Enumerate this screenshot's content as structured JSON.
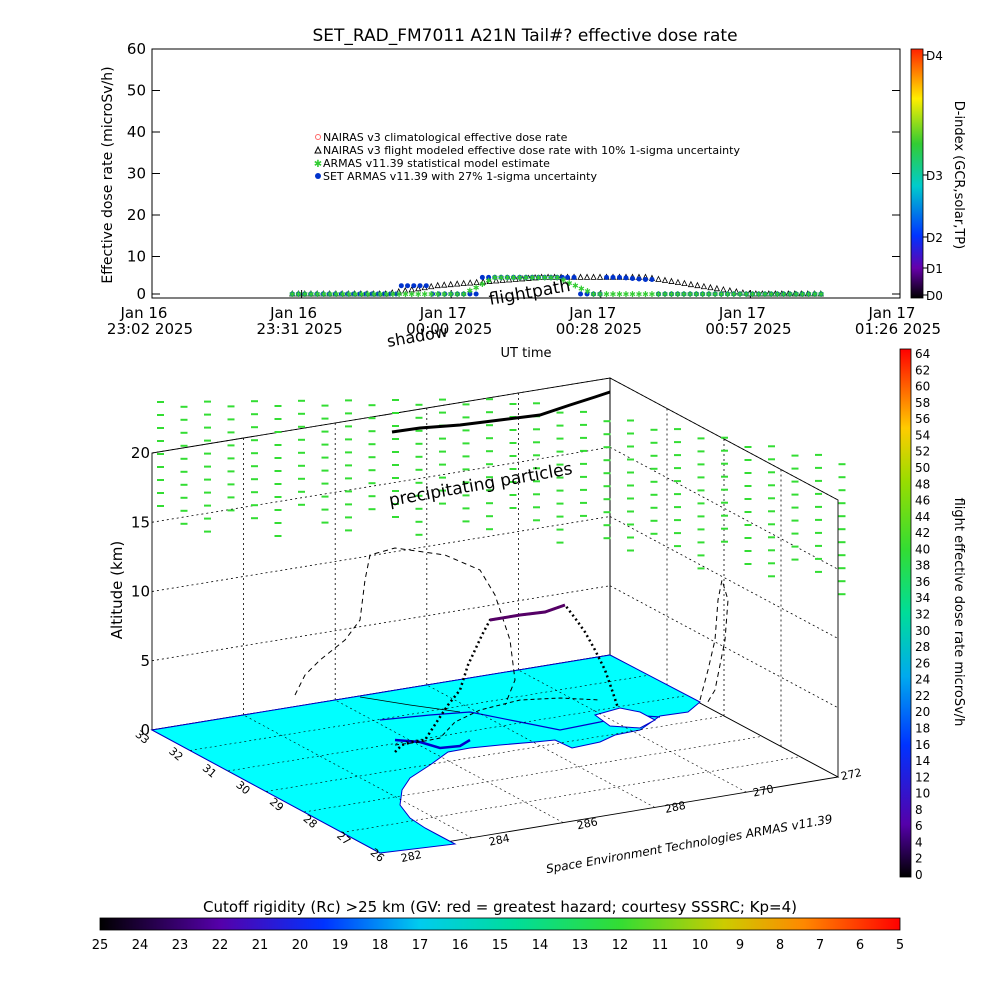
{
  "title": "SET_RAD_FM7011  A21N Tail#? effective dose rate",
  "top_chart": {
    "ylabel": "Effective dose rate (microSv/h)",
    "xlabel": "UT time",
    "y_ticks": [
      "0",
      "10",
      "20",
      "30",
      "40",
      "50",
      "60"
    ],
    "x_ticks": [
      {
        "l1": "Jan 16",
        "l2": "23:02 2025"
      },
      {
        "l1": "Jan 16",
        "l2": "23:31 2025"
      },
      {
        "l1": "Jan 17",
        "l2": "00:00 2025"
      },
      {
        "l1": "Jan 17",
        "l2": "00:28 2025"
      },
      {
        "l1": "Jan 17",
        "l2": "00:57 2025"
      },
      {
        "l1": "Jan 17",
        "l2": "01:26 2025"
      }
    ],
    "legend": [
      {
        "label": "NAIRAS v3 climatological effective dose rate",
        "color": "#ff6666",
        "marker": "o"
      },
      {
        "label": "NAIRAS v3 flight modeled effective dose rate with 10% 1-sigma uncertainty",
        "color": "#000000",
        "marker": "triangle"
      },
      {
        "label": "ARMAS v11.39 statistical model estimate",
        "color": "#33cc33",
        "marker": "x"
      },
      {
        "label": "SET ARMAS v11.39 with 27% 1-sigma uncertainty",
        "color": "#0033cc",
        "marker": "dot"
      }
    ],
    "dindex": {
      "label": "D-index (GCR,solar,TP)",
      "ticks": [
        "D4",
        "D3",
        "D2",
        "D1",
        "D0"
      ]
    }
  },
  "chart_data": {
    "type": "scatter",
    "title": "SET_RAD_FM7011  A21N Tail#? effective dose rate",
    "xlabel": "UT time",
    "ylabel": "Effective dose rate (microSv/h)",
    "x_range_minutes_after_2302": [
      0,
      144
    ],
    "ylim": [
      0,
      60
    ],
    "series": [
      {
        "name": "NAIRAS v3 flight modeled effective dose rate with 10% 1-sigma uncertainty",
        "x": [
          27,
          45,
          50,
          55,
          60,
          65,
          70,
          75,
          80,
          85,
          90,
          95,
          100,
          105,
          110,
          115,
          120,
          125,
          130
        ],
        "y": [
          0,
          0,
          1,
          2,
          2.5,
          3,
          3.5,
          4,
          4,
          4,
          4,
          4,
          3,
          2,
          1,
          0,
          0,
          0,
          0
        ]
      },
      {
        "name": "SET ARMAS v11.39 with 27% 1-sigma uncertainty",
        "x": [
          27,
          40,
          47,
          48,
          60,
          66,
          78,
          80,
          85,
          90,
          95,
          100,
          130
        ],
        "y": [
          0,
          0,
          0,
          2,
          0,
          4,
          4,
          4,
          0,
          4,
          3.5,
          0,
          0
        ]
      },
      {
        "name": "ARMAS v11.39 statistical model estimate",
        "x": [
          27,
          50,
          60,
          66,
          78,
          85,
          90,
          100,
          130
        ],
        "y": [
          0,
          0,
          0,
          4,
          4,
          0,
          0,
          0,
          0
        ]
      }
    ]
  },
  "scene3d": {
    "zlabel": "Altitude (km)",
    "z_ticks": [
      "0",
      "5",
      "10",
      "15",
      "20"
    ],
    "lat_ticks": [
      "33",
      "32",
      "31",
      "30",
      "29",
      "28",
      "27",
      "26"
    ],
    "lon_ticks": [
      "282",
      "284",
      "286",
      "288",
      "270",
      "272"
    ],
    "label_flightpath": "flightpath",
    "label_shadow": "shadow",
    "label_particles": "precipitating particles",
    "credit": "Space Environment Technologies ARMAS v11.39"
  },
  "right_colorbar": {
    "label": "flight effective dose rate microSv/h",
    "ticks": [
      "64",
      "62",
      "60",
      "58",
      "56",
      "54",
      "52",
      "50",
      "48",
      "46",
      "44",
      "42",
      "40",
      "38",
      "36",
      "34",
      "32",
      "30",
      "28",
      "26",
      "24",
      "22",
      "20",
      "18",
      "16",
      "14",
      "12",
      "10",
      "8",
      "6",
      "4",
      "2",
      "0"
    ]
  },
  "bottom_colorbar": {
    "title": "Cutoff rigidity (Rc) >25 km (GV: red = greatest hazard; courtesy SSSRC; Kp=4)",
    "ticks": [
      "25",
      "24",
      "23",
      "22",
      "21",
      "20",
      "19",
      "18",
      "17",
      "16",
      "15",
      "14",
      "13",
      "12",
      "11",
      "10",
      "9",
      "8",
      "7",
      "6",
      "5"
    ]
  },
  "colors": {
    "ocean": "#00ffff",
    "land_outline": "#0000cc",
    "particles": "#33dd33",
    "armas": "#0033cc",
    "nairas": "#000000",
    "stat": "#33cc33"
  }
}
